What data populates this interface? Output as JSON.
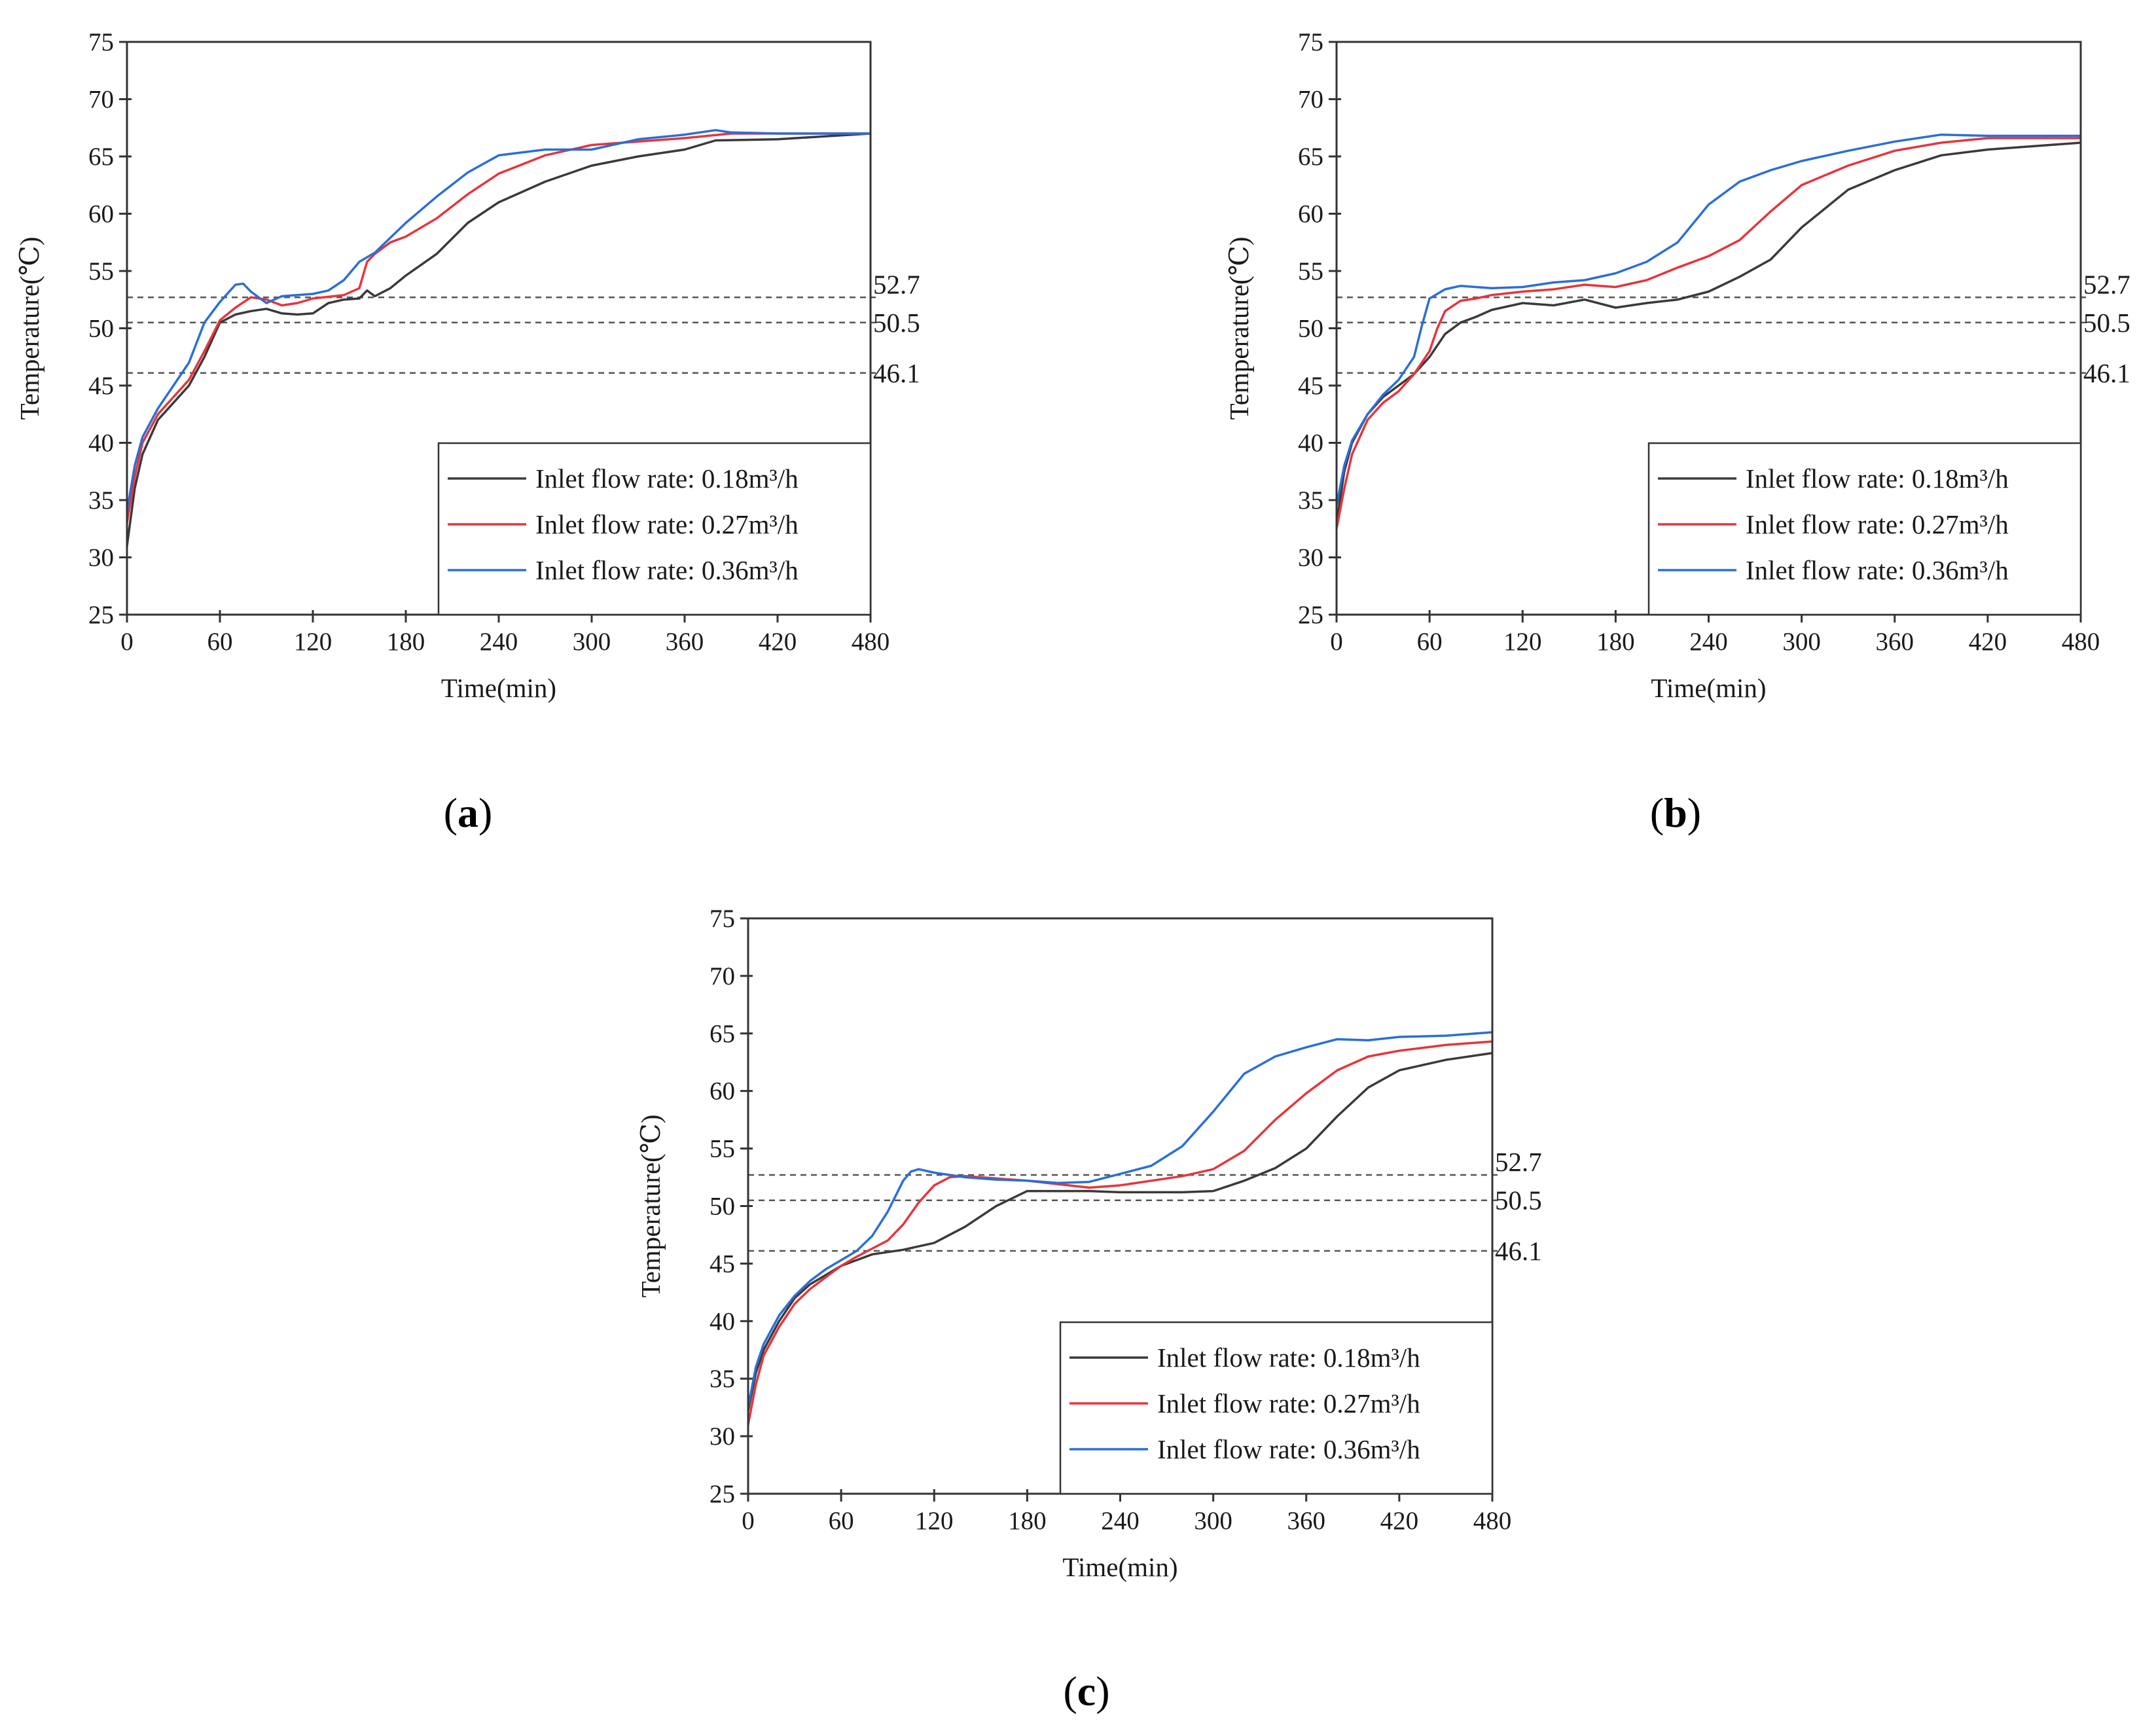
{
  "colors": {
    "s018": "#3a3a3a",
    "s027": "#e8343a",
    "s036": "#2a6fd6"
  },
  "chart_data": [
    {
      "type": "line",
      "caption_open": "(",
      "caption_letter": "a",
      "caption_close": ")",
      "xlabel": "Time(min)",
      "ylabel": "Temperature(℃)",
      "xlim": [
        0,
        480
      ],
      "ylim": [
        25,
        75
      ],
      "xticks": [
        0,
        60,
        120,
        180,
        240,
        300,
        360,
        420,
        480
      ],
      "yticks": [
        25,
        30,
        35,
        40,
        45,
        50,
        55,
        60,
        65,
        70,
        75
      ],
      "reference_lines": [
        {
          "y": 52.7,
          "label": "52.7"
        },
        {
          "y": 50.5,
          "label": "50.5"
        },
        {
          "y": 46.1,
          "label": "46.1"
        }
      ],
      "legend_position": "lower-right",
      "series": [
        {
          "name": "Inlet flow rate: 0.18m³/h",
          "color_key": "s018",
          "x": [
            0,
            5,
            10,
            20,
            30,
            40,
            50,
            60,
            70,
            80,
            90,
            100,
            110,
            120,
            130,
            140,
            150,
            155,
            160,
            170,
            180,
            200,
            220,
            240,
            270,
            300,
            330,
            360,
            380,
            420,
            480
          ],
          "y": [
            31,
            36,
            39,
            42,
            43.5,
            45,
            47.5,
            50.5,
            51.2,
            51.5,
            51.7,
            51.3,
            51.2,
            51.3,
            52.2,
            52.5,
            52.6,
            53.3,
            52.8,
            53.5,
            54.6,
            56.5,
            59.2,
            61,
            62.8,
            64.2,
            65,
            65.6,
            66.4,
            66.5,
            67
          ]
        },
        {
          "name": "Inlet flow rate: 0.27m³/h",
          "color_key": "s027",
          "x": [
            0,
            5,
            10,
            20,
            30,
            40,
            50,
            60,
            70,
            80,
            90,
            100,
            110,
            120,
            140,
            150,
            155,
            160,
            170,
            180,
            200,
            220,
            240,
            270,
            300,
            330,
            360,
            390,
            420,
            480
          ],
          "y": [
            33,
            37,
            40,
            42.5,
            44,
            45.5,
            48,
            50.7,
            51.8,
            52.7,
            52.5,
            52,
            52.2,
            52.6,
            52.9,
            53.5,
            55.8,
            56.5,
            57.5,
            58,
            59.6,
            61.7,
            63.5,
            65.1,
            66,
            66.3,
            66.6,
            67,
            67,
            67
          ]
        },
        {
          "name": "Inlet flow rate: 0.36m³/h",
          "color_key": "s036",
          "x": [
            0,
            5,
            10,
            20,
            30,
            40,
            50,
            60,
            70,
            75,
            80,
            90,
            100,
            110,
            120,
            130,
            140,
            150,
            160,
            180,
            200,
            220,
            240,
            270,
            300,
            330,
            360,
            380,
            390,
            420,
            480
          ],
          "y": [
            34,
            38,
            40.5,
            43,
            45,
            47,
            50.5,
            52.3,
            53.8,
            53.9,
            53.2,
            52.2,
            52.8,
            52.9,
            53,
            53.3,
            54.2,
            55.8,
            56.6,
            59.2,
            61.5,
            63.6,
            65.1,
            65.6,
            65.6,
            66.5,
            66.9,
            67.3,
            67.1,
            67,
            67
          ]
        }
      ]
    },
    {
      "type": "line",
      "caption_open": "(",
      "caption_letter": "b",
      "caption_close": ")",
      "xlabel": "Time(min)",
      "ylabel": "Temperature(℃)",
      "xlim": [
        0,
        480
      ],
      "ylim": [
        25,
        75
      ],
      "xticks": [
        0,
        60,
        120,
        180,
        240,
        300,
        360,
        420,
        480
      ],
      "yticks": [
        25,
        30,
        35,
        40,
        45,
        50,
        55,
        60,
        65,
        70,
        75
      ],
      "reference_lines": [
        {
          "y": 52.7,
          "label": "52.7"
        },
        {
          "y": 50.5,
          "label": "50.5"
        },
        {
          "y": 46.1,
          "label": "46.1"
        }
      ],
      "legend_position": "lower-right",
      "series": [
        {
          "name": "Inlet flow rate: 0.18m³/h",
          "color_key": "s018",
          "x": [
            0,
            5,
            10,
            20,
            30,
            40,
            50,
            60,
            70,
            80,
            90,
            100,
            120,
            140,
            160,
            180,
            200,
            220,
            240,
            260,
            280,
            300,
            330,
            360,
            390,
            420,
            480
          ],
          "y": [
            33,
            37.5,
            40,
            42.5,
            44,
            45,
            46,
            47.5,
            49.5,
            50.5,
            51,
            51.6,
            52.2,
            52,
            52.5,
            51.8,
            52.2,
            52.5,
            53.2,
            54.5,
            56,
            58.8,
            62.1,
            63.8,
            65.1,
            65.6,
            66.2
          ]
        },
        {
          "name": "Inlet flow rate: 0.27m³/h",
          "color_key": "s027",
          "x": [
            0,
            5,
            10,
            20,
            30,
            40,
            50,
            60,
            65,
            70,
            80,
            90,
            100,
            120,
            140,
            160,
            180,
            200,
            220,
            240,
            260,
            280,
            300,
            330,
            360,
            390,
            420,
            480
          ],
          "y": [
            32.5,
            36,
            39,
            42,
            43.5,
            44.5,
            46,
            48,
            50,
            51.5,
            52.4,
            52.6,
            52.9,
            53.2,
            53.4,
            53.8,
            53.6,
            54.2,
            55.3,
            56.3,
            57.7,
            60.2,
            62.5,
            64.2,
            65.5,
            66.2,
            66.6,
            66.6
          ]
        },
        {
          "name": "Inlet flow rate: 0.36m³/h",
          "color_key": "s036",
          "x": [
            0,
            5,
            10,
            20,
            30,
            40,
            50,
            55,
            60,
            70,
            80,
            90,
            100,
            120,
            140,
            160,
            180,
            200,
            220,
            240,
            260,
            280,
            300,
            330,
            360,
            390,
            420,
            480
          ],
          "y": [
            34.5,
            38,
            40.2,
            42.5,
            44.2,
            45.5,
            47.5,
            50.2,
            52.6,
            53.4,
            53.7,
            53.6,
            53.5,
            53.6,
            54,
            54.2,
            54.8,
            55.8,
            57.5,
            60.8,
            62.8,
            63.8,
            64.6,
            65.5,
            66.3,
            66.9,
            66.8,
            66.8
          ]
        }
      ]
    },
    {
      "type": "line",
      "caption_open": "(",
      "caption_letter": "c",
      "caption_close": ")",
      "xlabel": "Time(min)",
      "ylabel": "Temperature(℃)",
      "xlim": [
        0,
        480
      ],
      "ylim": [
        25,
        75
      ],
      "xticks": [
        0,
        60,
        120,
        180,
        240,
        300,
        360,
        420,
        480
      ],
      "yticks": [
        25,
        30,
        35,
        40,
        45,
        50,
        55,
        60,
        65,
        70,
        75
      ],
      "reference_lines": [
        {
          "y": 52.7,
          "label": "52.7"
        },
        {
          "y": 50.5,
          "label": "50.5"
        },
        {
          "y": 46.1,
          "label": "46.1"
        }
      ],
      "legend_position": "lower-right",
      "series": [
        {
          "name": "Inlet flow rate: 0.18m³/h",
          "color_key": "s018",
          "x": [
            0,
            5,
            10,
            20,
            30,
            40,
            50,
            60,
            70,
            80,
            90,
            100,
            120,
            140,
            160,
            180,
            200,
            220,
            240,
            260,
            280,
            300,
            320,
            340,
            360,
            380,
            400,
            420,
            450,
            480
          ],
          "y": [
            32.2,
            35.5,
            37.5,
            40,
            42,
            43.2,
            44,
            44.8,
            45.3,
            45.8,
            46,
            46.2,
            46.8,
            48.2,
            50,
            51.3,
            51.3,
            51.3,
            51.2,
            51.2,
            51.2,
            51.3,
            52.2,
            53.3,
            55,
            57.8,
            60.3,
            61.8,
            62.7,
            63.3
          ]
        },
        {
          "name": "Inlet flow rate: 0.27m³/h",
          "color_key": "s027",
          "x": [
            0,
            5,
            10,
            20,
            30,
            40,
            50,
            60,
            70,
            80,
            90,
            100,
            110,
            120,
            130,
            140,
            160,
            180,
            200,
            220,
            240,
            260,
            280,
            300,
            320,
            340,
            360,
            380,
            400,
            420,
            450,
            480
          ],
          "y": [
            31,
            34.5,
            37,
            39.5,
            41.5,
            42.8,
            43.8,
            44.8,
            45.6,
            46.3,
            47,
            48.4,
            50.3,
            51.8,
            52.5,
            52.6,
            52.4,
            52.2,
            51.9,
            51.6,
            51.8,
            52.2,
            52.6,
            53.2,
            54.8,
            57.5,
            59.8,
            61.8,
            63,
            63.5,
            64,
            64.3
          ]
        },
        {
          "name": "Inlet flow rate: 0.36m³/h",
          "color_key": "s036",
          "x": [
            0,
            5,
            10,
            20,
            30,
            40,
            50,
            60,
            70,
            80,
            90,
            100,
            105,
            110,
            120,
            140,
            160,
            180,
            200,
            220,
            240,
            260,
            280,
            300,
            320,
            340,
            360,
            380,
            400,
            420,
            450,
            480
          ],
          "y": [
            32.5,
            36,
            38,
            40.5,
            42.2,
            43.5,
            44.5,
            45.3,
            46.1,
            47.4,
            49.5,
            52.2,
            53,
            53.2,
            52.9,
            52.5,
            52.3,
            52.2,
            52,
            52.1,
            52.8,
            53.5,
            55.2,
            58.2,
            61.5,
            63,
            63.8,
            64.5,
            64.4,
            64.7,
            64.8,
            65.1
          ]
        }
      ]
    }
  ]
}
